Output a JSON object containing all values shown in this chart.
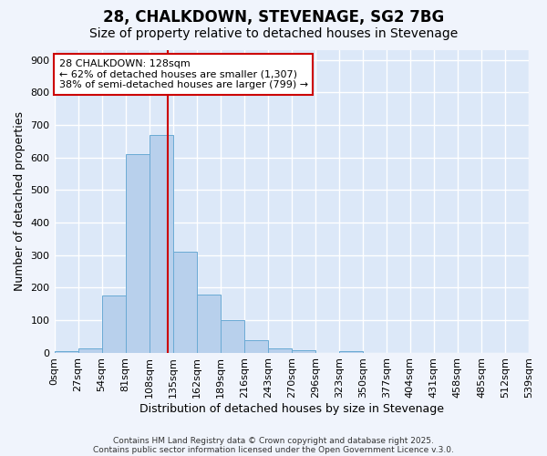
{
  "title": "28, CHALKDOWN, STEVENAGE, SG2 7BG",
  "subtitle": "Size of property relative to detached houses in Stevenage",
  "xlabel": "Distribution of detached houses by size in Stevenage",
  "ylabel": "Number of detached properties",
  "bar_values": [
    5,
    12,
    175,
    610,
    670,
    310,
    178,
    100,
    38,
    12,
    8,
    0,
    5,
    0,
    0,
    0,
    0,
    0,
    0
  ],
  "bin_labels": [
    "0sqm",
    "27sqm",
    "54sqm",
    "81sqm",
    "108sqm",
    "135sqm",
    "162sqm",
    "189sqm",
    "216sqm",
    "243sqm",
    "270sqm",
    "296sqm",
    "323sqm",
    "350sqm",
    "377sqm",
    "404sqm",
    "431sqm",
    "458sqm",
    "485sqm",
    "512sqm",
    "539sqm"
  ],
  "bar_color": "#b8d0ec",
  "bar_edge_color": "#6aaad4",
  "plot_bg_color": "#dce8f8",
  "fig_bg_color": "#f0f4fc",
  "grid_color": "#ffffff",
  "vline_x": 4.77,
  "vline_color": "#cc0000",
  "annotation_text": "28 CHALKDOWN: 128sqm\n← 62% of detached houses are smaller (1,307)\n38% of semi-detached houses are larger (799) →",
  "annotation_box_color": "#ffffff",
  "annotation_box_edge": "#cc0000",
  "footer1": "Contains HM Land Registry data © Crown copyright and database right 2025.",
  "footer2": "Contains public sector information licensed under the Open Government Licence v.3.0.",
  "ylim": [
    0,
    930
  ],
  "yticks": [
    0,
    100,
    200,
    300,
    400,
    500,
    600,
    700,
    800,
    900
  ],
  "title_fontsize": 12,
  "subtitle_fontsize": 10,
  "axis_label_fontsize": 9,
  "tick_fontsize": 8,
  "annotation_fontsize": 8
}
